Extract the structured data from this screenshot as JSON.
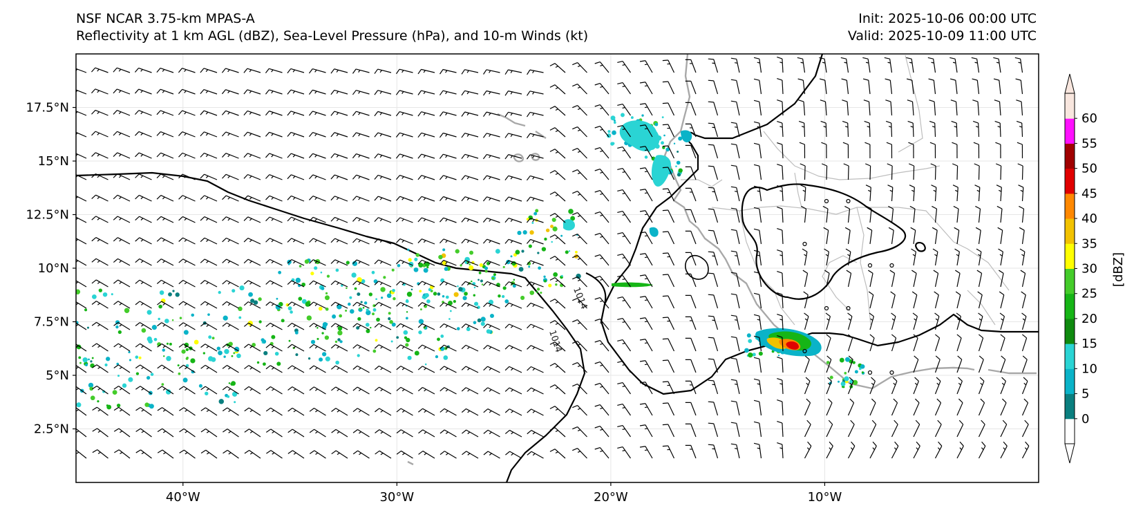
{
  "header": {
    "model": "NSF NCAR 3.75-km MPAS-A",
    "fields": "Reflectivity at 1 km AGL (dBZ), Sea-Level Pressure (hPa), and 10-m Winds (kt)",
    "init": "Init: 2025-10-06 00:00 UTC",
    "valid": "Valid: 2025-10-09 11:00 UTC"
  },
  "map": {
    "lon_range": [
      -45,
      0
    ],
    "lat_range": [
      0,
      20
    ],
    "lat_ticks": [
      {
        "value": 2.5,
        "label": "2.5°N"
      },
      {
        "value": 5,
        "label": "5°N"
      },
      {
        "value": 7.5,
        "label": "7.5°N"
      },
      {
        "value": 10,
        "label": "10°N"
      },
      {
        "value": 12.5,
        "label": "12.5°N"
      },
      {
        "value": 15,
        "label": "15°N"
      },
      {
        "value": 17.5,
        "label": "17.5°N"
      }
    ],
    "lon_ticks": [
      {
        "value": -40,
        "label": "40°W"
      },
      {
        "value": -30,
        "label": "30°W"
      },
      {
        "value": -20,
        "label": "20°W"
      },
      {
        "value": -10,
        "label": "10°W"
      }
    ],
    "contour_labels": [
      "1014",
      "1014"
    ],
    "colors": {
      "coastline": "#a0a0a0",
      "isobar": "#000000",
      "gridline": "#e6e6e6"
    }
  },
  "colorbar": {
    "label": "[dBZ]",
    "ticks": [
      "0",
      "5",
      "10",
      "15",
      "20",
      "25",
      "30",
      "35",
      "40",
      "45",
      "50",
      "55",
      "60"
    ],
    "colors": [
      "#ffffff",
      "#0a7f7f",
      "#0ab3c8",
      "#2ad4d4",
      "#0f8a0f",
      "#16b516",
      "#44cc2a",
      "#ffff00",
      "#f2c200",
      "#ff8800",
      "#e00000",
      "#a00000",
      "#ff10ff",
      "#f8e6de"
    ]
  }
}
